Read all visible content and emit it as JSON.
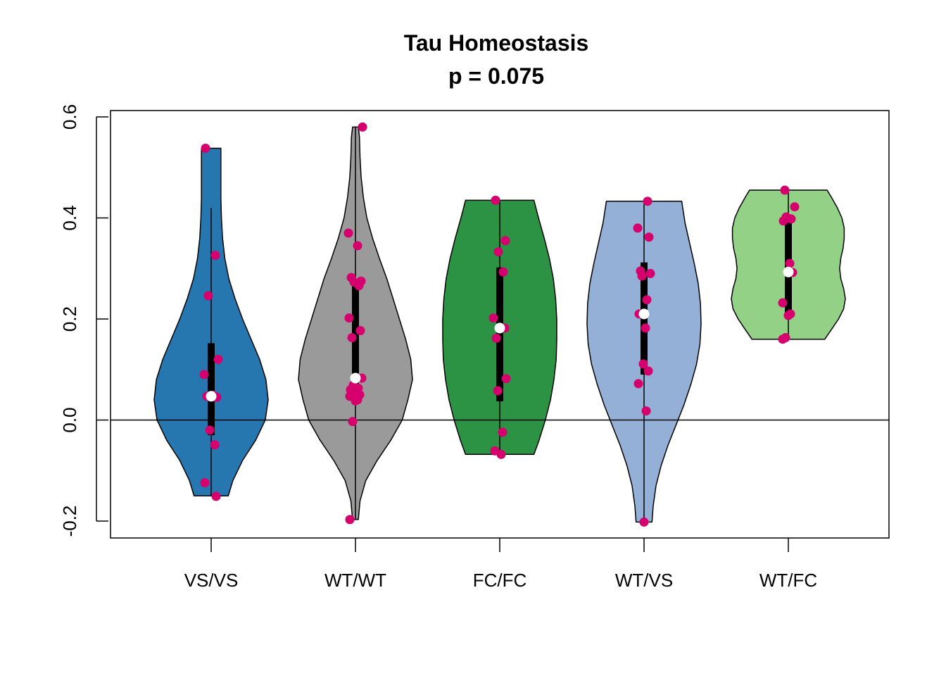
{
  "chart_data": {
    "type": "violin",
    "title": "Tau Homeostasis",
    "subtitle": "p = 0.075",
    "xlabel": "",
    "ylabel": "",
    "ylim": [
      -0.2,
      0.6
    ],
    "yticks": [
      -0.2,
      0.0,
      0.2,
      0.4,
      0.6
    ],
    "reference_line_y": 0.0,
    "point_color": "#d5006d",
    "median_color": "#ffffff",
    "groups": [
      {
        "label": "VS/VS",
        "fill": "#2677b0",
        "min": -0.15,
        "max": 0.538,
        "q1": -0.03,
        "q3": 0.152,
        "median": 0.047,
        "whisker_low": -0.15,
        "whisker_high": 0.42,
        "density": [
          [
            -0.15,
            0.3
          ],
          [
            -0.12,
            0.38
          ],
          [
            -0.08,
            0.55
          ],
          [
            -0.04,
            0.78
          ],
          [
            0.0,
            0.95
          ],
          [
            0.04,
            1.0
          ],
          [
            0.08,
            0.96
          ],
          [
            0.12,
            0.85
          ],
          [
            0.16,
            0.7
          ],
          [
            0.2,
            0.55
          ],
          [
            0.24,
            0.42
          ],
          [
            0.28,
            0.31
          ],
          [
            0.32,
            0.24
          ],
          [
            0.36,
            0.2
          ],
          [
            0.4,
            0.18
          ],
          [
            0.44,
            0.17
          ],
          [
            0.48,
            0.17
          ],
          [
            0.538,
            0.17
          ]
        ],
        "points": [
          0.538,
          0.326,
          0.246,
          0.12,
          0.09,
          0.049,
          0.047,
          0.045,
          -0.02,
          -0.049,
          -0.124,
          -0.151
        ]
      },
      {
        "label": "WT/WT",
        "fill": "#9a9a9a",
        "min": -0.197,
        "max": 0.58,
        "q1": 0.06,
        "q3": 0.27,
        "median": 0.083,
        "whisker_low": -0.197,
        "whisker_high": 0.58,
        "density": [
          [
            -0.197,
            0.05
          ],
          [
            -0.16,
            0.08
          ],
          [
            -0.12,
            0.18
          ],
          [
            -0.08,
            0.38
          ],
          [
            -0.04,
            0.62
          ],
          [
            0.0,
            0.82
          ],
          [
            0.04,
            0.92
          ],
          [
            0.08,
            1.0
          ],
          [
            0.12,
            0.97
          ],
          [
            0.16,
            0.88
          ],
          [
            0.2,
            0.77
          ],
          [
            0.24,
            0.66
          ],
          [
            0.28,
            0.55
          ],
          [
            0.32,
            0.42
          ],
          [
            0.36,
            0.3
          ],
          [
            0.4,
            0.2
          ],
          [
            0.44,
            0.14
          ],
          [
            0.48,
            0.1
          ],
          [
            0.52,
            0.08
          ],
          [
            0.56,
            0.07
          ],
          [
            0.58,
            0.05
          ]
        ],
        "points": [
          0.58,
          0.37,
          0.345,
          0.282,
          0.275,
          0.273,
          0.266,
          0.202,
          0.177,
          0.163,
          0.083,
          0.069,
          0.063,
          0.06,
          0.055,
          0.053,
          0.05,
          0.047,
          0.04,
          0.038,
          -0.003,
          -0.197
        ]
      },
      {
        "label": "FC/FC",
        "fill": "#2d9344",
        "min": -0.068,
        "max": 0.435,
        "q1": 0.037,
        "q3": 0.302,
        "median": 0.182,
        "whisker_low": -0.068,
        "whisker_high": 0.435,
        "density": [
          [
            -0.068,
            0.6
          ],
          [
            -0.04,
            0.69
          ],
          [
            0.0,
            0.8
          ],
          [
            0.04,
            0.89
          ],
          [
            0.08,
            0.95
          ],
          [
            0.12,
            0.99
          ],
          [
            0.16,
            1.0
          ],
          [
            0.2,
            1.0
          ],
          [
            0.24,
            0.98
          ],
          [
            0.28,
            0.94
          ],
          [
            0.32,
            0.87
          ],
          [
            0.36,
            0.78
          ],
          [
            0.4,
            0.68
          ],
          [
            0.435,
            0.6
          ]
        ],
        "points": [
          0.435,
          0.355,
          0.333,
          0.293,
          0.202,
          0.182,
          0.162,
          0.082,
          0.058,
          -0.024,
          -0.061,
          -0.068
        ]
      },
      {
        "label": "WT/VS",
        "fill": "#95b0d6",
        "min": -0.202,
        "max": 0.433,
        "q1": 0.09,
        "q3": 0.312,
        "median": 0.21,
        "whisker_low": -0.202,
        "whisker_high": 0.433,
        "density": [
          [
            -0.202,
            0.14
          ],
          [
            -0.17,
            0.16
          ],
          [
            -0.13,
            0.21
          ],
          [
            -0.09,
            0.3
          ],
          [
            -0.05,
            0.42
          ],
          [
            -0.01,
            0.56
          ],
          [
            0.03,
            0.7
          ],
          [
            0.07,
            0.82
          ],
          [
            0.11,
            0.92
          ],
          [
            0.15,
            0.98
          ],
          [
            0.19,
            1.0
          ],
          [
            0.23,
            0.99
          ],
          [
            0.27,
            0.95
          ],
          [
            0.31,
            0.88
          ],
          [
            0.35,
            0.8
          ],
          [
            0.39,
            0.72
          ],
          [
            0.433,
            0.66
          ]
        ],
        "points": [
          0.433,
          0.38,
          0.362,
          0.295,
          0.29,
          0.285,
          0.238,
          0.21,
          0.182,
          0.111,
          0.097,
          0.072,
          0.018,
          -0.202
        ]
      },
      {
        "label": "WT/FC",
        "fill": "#92d186",
        "min": 0.16,
        "max": 0.455,
        "q1": 0.21,
        "q3": 0.402,
        "median": 0.293,
        "whisker_low": 0.16,
        "whisker_high": 0.455,
        "density": [
          [
            0.16,
            0.64
          ],
          [
            0.18,
            0.76
          ],
          [
            0.2,
            0.88
          ],
          [
            0.22,
            0.97
          ],
          [
            0.24,
            1.0
          ],
          [
            0.26,
            0.97
          ],
          [
            0.28,
            0.92
          ],
          [
            0.3,
            0.9
          ],
          [
            0.32,
            0.92
          ],
          [
            0.34,
            0.96
          ],
          [
            0.36,
            0.98
          ],
          [
            0.38,
            0.98
          ],
          [
            0.4,
            0.94
          ],
          [
            0.42,
            0.86
          ],
          [
            0.44,
            0.76
          ],
          [
            0.455,
            0.68
          ]
        ],
        "points": [
          0.455,
          0.422,
          0.402,
          0.398,
          0.394,
          0.31,
          0.293,
          0.292,
          0.232,
          0.21,
          0.207,
          0.163,
          0.16
        ]
      }
    ]
  }
}
